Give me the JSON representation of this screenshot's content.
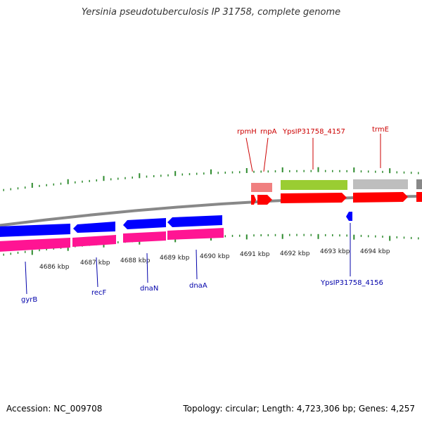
{
  "title": "Yersinia pseudotuberculosis IP 31758, complete genome",
  "footer": {
    "accession": "Accession: NC_009708",
    "stats": "Topology: circular; Length: 4,723,306 bp; Genes: 4,257"
  },
  "colors": {
    "plus_label": "#cc0000",
    "minus_label": "#0000aa",
    "cds_red": "#ff0000",
    "cds_blue": "#0000ff",
    "pink": "#ff1493",
    "rrna_pink": "#f08080",
    "green": "#9acd32",
    "grey": "#bebebe",
    "tick": "#2e8b2e",
    "backbone": "#888888"
  },
  "ruler_labels": [
    "4686 kbp",
    "4687 kbp",
    "4688 kbp",
    "4689 kbp",
    "4690 kbp",
    "4691 kbp",
    "4692 kbp",
    "4693 kbp",
    "4694 kbp"
  ],
  "gene_labels": {
    "plus": [
      "rpmH",
      "rnpA",
      "YpsIP31758_4157",
      "trmE"
    ],
    "minus": [
      "gyrB",
      "recF",
      "dnaN",
      "dnaA",
      "YpsIP31758_4156"
    ]
  }
}
